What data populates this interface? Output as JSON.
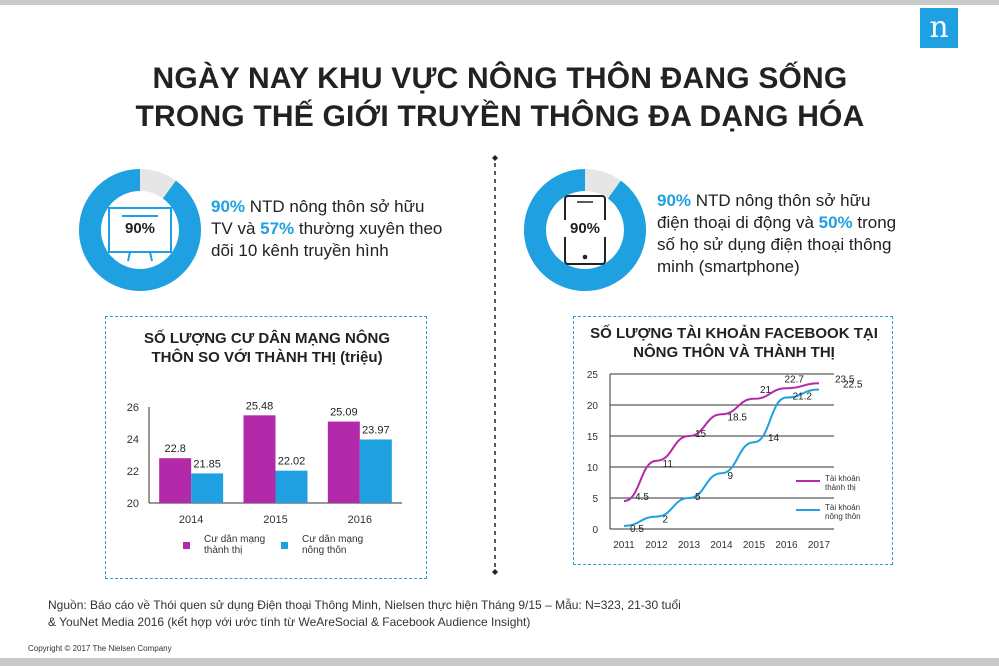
{
  "brand": {
    "logo_letter": "n",
    "accent": "#1fa0e0",
    "purple": "#b22aaa"
  },
  "title": {
    "line1": "NGÀY NAY KHU VỰC NÔNG THÔN ĐANG SỐNG",
    "line2": "TRONG THẾ GIỚI TRUYỀN THÔNG ĐA DẠNG HÓA"
  },
  "stat_tv": {
    "pct_label": "90%",
    "value": 90,
    "icon": "tv-icon",
    "hl1": "90%",
    "t1": " NTD nông thôn sở hữu",
    "t2": "TV và ",
    "hl2": "57%",
    "t3": " thường xuyên theo",
    "t4": "dõi 10 kênh truyền hình"
  },
  "stat_phone": {
    "pct_label": "90%",
    "value": 90,
    "icon": "smartphone-icon",
    "hl1": "90%",
    "t1": " NTD nông thôn sở hữu",
    "t2": "điện thoại di động và ",
    "hl2": "50%",
    "t3": " trong",
    "t4": "số họ sử dụng điện thoại thông",
    "t5": "minh (smartphone)"
  },
  "chart_data": [
    {
      "type": "bar",
      "title_line1": "SỐ LƯỢNG CƯ DÂN MẠNG NÔNG",
      "title_line2": "THÔN SO VỚI THÀNH THỊ (triệu)",
      "categories": [
        "2014",
        "2015",
        "2016"
      ],
      "series": [
        {
          "name": "Cư dân mạng thành thị",
          "name_line1": "Cư dân mạng",
          "name_line2": "thành thị",
          "values": [
            22.8,
            25.48,
            25.09
          ],
          "labels": [
            "22.8",
            "25.48",
            "25.09"
          ]
        },
        {
          "name": "Cư dân mạng nông thôn",
          "name_line1": "Cư dân mạng",
          "name_line2": "nông thôn",
          "values": [
            21.85,
            22.02,
            23.97
          ],
          "labels": [
            "21.85",
            "22.02",
            "23.97"
          ]
        }
      ],
      "ylim": [
        20,
        26
      ],
      "yticks": [
        "20",
        "22",
        "24",
        "26"
      ],
      "legend": "bottom"
    },
    {
      "type": "line",
      "title_line1": "SỐ LƯỢNG TÀI KHOẢN FACEBOOK TẠI",
      "title_line2": "NÔNG THÔN VÀ THÀNH THỊ",
      "x": [
        "2011",
        "2012",
        "2013",
        "2014",
        "2015",
        "2016",
        "2017"
      ],
      "series": [
        {
          "name": "Tài khoản thành thị",
          "name_line1": "Tài khoản",
          "name_line2": "thành thị",
          "values": [
            4.5,
            11,
            15,
            18.5,
            21,
            22.7,
            23.5
          ],
          "labels": [
            "4.5",
            "11",
            "15",
            "18.5",
            "21",
            "22.7",
            "23.5"
          ]
        },
        {
          "name": "Tài khoản nông thôn",
          "name_line1": "Tài khoản",
          "name_line2": "nông thôn",
          "values": [
            0.5,
            2,
            5,
            9,
            14,
            21.2,
            22.5
          ],
          "labels": [
            "0.5",
            "2",
            "5",
            "9",
            "14",
            "21.2",
            "22.5"
          ]
        }
      ],
      "ylim": [
        0,
        25
      ],
      "yticks": [
        "0",
        "5",
        "10",
        "15",
        "20",
        "25"
      ],
      "grid": true,
      "legend": "right"
    }
  ],
  "footer": {
    "line1": "Nguồn: Báo cáo về Thói quen sử dụng Điện thoại Thông Minh, Nielsen thực hiện Tháng 9/15 – Mẫu: N=323, 21-30 tuổi",
    "line2": "& YouNet Media 2016 (kết hợp với ước tính từ WeAreSocial & Facebook Audience Insight)"
  },
  "copyright": "Copyright © 2017  The Nielsen Company"
}
